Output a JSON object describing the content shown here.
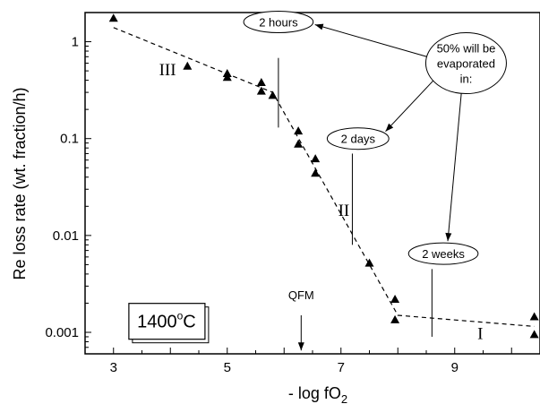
{
  "chart_data": {
    "type": "scatter",
    "xlabel": "- log fO",
    "xlabel_sub": "2",
    "ylabel": "Re loss rate (wt. fraction/h)",
    "xlim": [
      2.5,
      10.5
    ],
    "ylim": [
      0.0006,
      2
    ],
    "y_scale": "log",
    "grid": false,
    "x_ticks": [
      {
        "value": 3,
        "label": "3"
      },
      {
        "value": 5,
        "label": "5"
      },
      {
        "value": 7,
        "label": "7"
      },
      {
        "value": 9,
        "label": "9"
      }
    ],
    "y_ticks": [
      {
        "value": 1,
        "label": "1"
      },
      {
        "value": 0.1,
        "label": "0.1"
      },
      {
        "value": 0.01,
        "label": "0.01"
      },
      {
        "value": 0.001,
        "label": "0.001"
      }
    ],
    "points": [
      {
        "x": 3.0,
        "y": 1.75
      },
      {
        "x": 4.3,
        "y": 0.56
      },
      {
        "x": 5.0,
        "y": 0.47
      },
      {
        "x": 5.0,
        "y": 0.43
      },
      {
        "x": 5.6,
        "y": 0.38
      },
      {
        "x": 5.6,
        "y": 0.31
      },
      {
        "x": 5.8,
        "y": 0.28
      },
      {
        "x": 6.25,
        "y": 0.12
      },
      {
        "x": 6.25,
        "y": 0.088
      },
      {
        "x": 6.55,
        "y": 0.062
      },
      {
        "x": 6.55,
        "y": 0.044
      },
      {
        "x": 7.5,
        "y": 0.0052
      },
      {
        "x": 7.95,
        "y": 0.0022
      },
      {
        "x": 7.95,
        "y": 0.00135
      },
      {
        "x": 10.4,
        "y": 0.00145
      },
      {
        "x": 10.4,
        "y": 0.00095
      }
    ],
    "trend_line": [
      {
        "x": 3.0,
        "y": 1.4
      },
      {
        "x": 5.8,
        "y": 0.3
      },
      {
        "x": 8.0,
        "y": 0.0015
      },
      {
        "x": 10.4,
        "y": 0.00115
      }
    ],
    "regimes": [
      {
        "label": "III",
        "x": 3.95,
        "y": 0.45
      },
      {
        "label": "II",
        "x": 7.05,
        "y": 0.016
      },
      {
        "label": "I",
        "x": 9.45,
        "y": 0.00085
      }
    ],
    "time_markers": [
      {
        "label": "2 hours",
        "x": 5.9,
        "y_top": 0.68,
        "y_bottom": 0.13,
        "label_x": 5.9,
        "label_y": 1.6
      },
      {
        "label": "2 days",
        "x": 7.2,
        "y_top": 0.07,
        "y_bottom": 0.008,
        "label_x": 7.3,
        "label_y": 0.1
      },
      {
        "label": "2 weeks",
        "x": 8.6,
        "y_top": 0.0045,
        "y_bottom": 0.0009,
        "label_x": 8.8,
        "label_y": 0.0065
      }
    ],
    "annotation": {
      "lines": [
        "50% will be",
        "evaporated",
        "in:"
      ],
      "x": 9.2,
      "y": 0.6
    },
    "reference": {
      "label": "QFM",
      "x": 6.3,
      "y_label": 0.0022,
      "y_from": 0.0015,
      "y_to": 0.00065
    },
    "temperature_box": {
      "text": "1400",
      "sup": "o",
      "unit": "C",
      "x": 3.9,
      "y": 0.0013
    }
  }
}
